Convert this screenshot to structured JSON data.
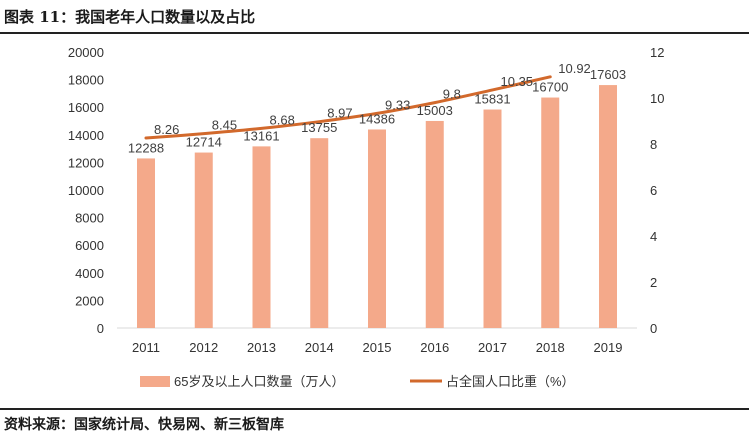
{
  "title": "图表 11：我国老年人口数量以及占比",
  "source": "资料来源：国家统计局、快易网、新三板智库",
  "chart_data": {
    "type": "bar+line",
    "categories": [
      "2011",
      "2012",
      "2013",
      "2014",
      "2015",
      "2016",
      "2017",
      "2018",
      "2019"
    ],
    "series": [
      {
        "name": "65岁及以上人口数量（万人）",
        "type": "bar",
        "axis": "left",
        "color": "#f4a98a",
        "values": [
          12288,
          12714,
          13161,
          13755,
          14386,
          15003,
          15831,
          16700,
          17603
        ]
      },
      {
        "name": "占全国人口比重（%）",
        "type": "line",
        "axis": "right",
        "color": "#d2692c",
        "values": [
          8.26,
          8.45,
          8.68,
          8.97,
          9.33,
          9.8,
          10.35,
          10.92,
          null
        ]
      }
    ],
    "y_left": {
      "min": 0,
      "max": 20000,
      "ticks": [
        0,
        2000,
        4000,
        6000,
        8000,
        10000,
        12000,
        14000,
        16000,
        18000,
        20000
      ]
    },
    "y_right": {
      "min": 0,
      "max": 12,
      "ticks": [
        0,
        2,
        4,
        6,
        8,
        10,
        12
      ]
    },
    "grid": false,
    "legend": "bottom"
  }
}
